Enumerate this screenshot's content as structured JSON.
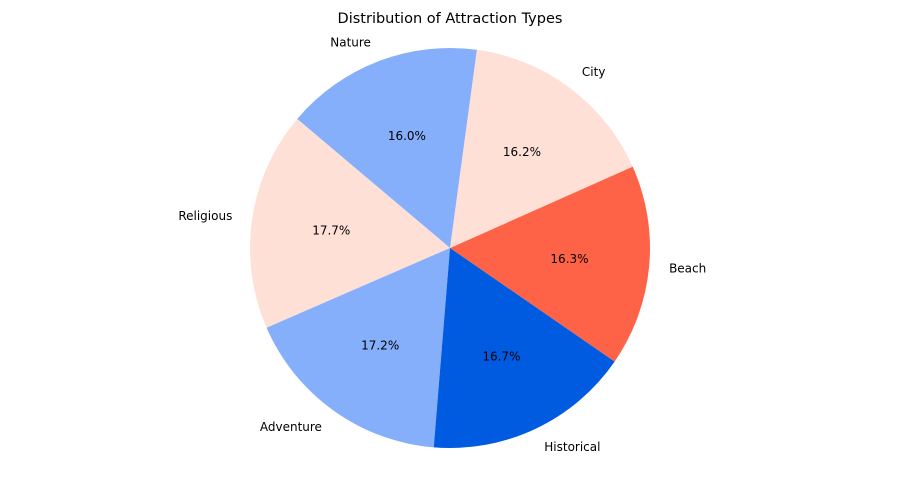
{
  "chart_data": {
    "type": "pie",
    "title": "Distribution of Attraction Types",
    "start_angle_deg": -34.6,
    "direction": "counterclockwise",
    "slices": [
      {
        "label": "Beach",
        "value": 16.3,
        "pct_label": "16.3%",
        "color": "#FF6347"
      },
      {
        "label": "City",
        "value": 16.2,
        "pct_label": "16.2%",
        "color": "#FFE0D6"
      },
      {
        "label": "Nature",
        "value": 16.0,
        "pct_label": "16.0%",
        "color": "#86AFFB"
      },
      {
        "label": "Religious",
        "value": 17.7,
        "pct_label": "17.7%",
        "color": "#FFE0D6"
      },
      {
        "label": "Adventure",
        "value": 17.2,
        "pct_label": "17.2%",
        "color": "#86AFFB"
      },
      {
        "label": "Historical",
        "value": 16.7,
        "pct_label": "16.7%",
        "color": "#005BE0"
      }
    ]
  }
}
